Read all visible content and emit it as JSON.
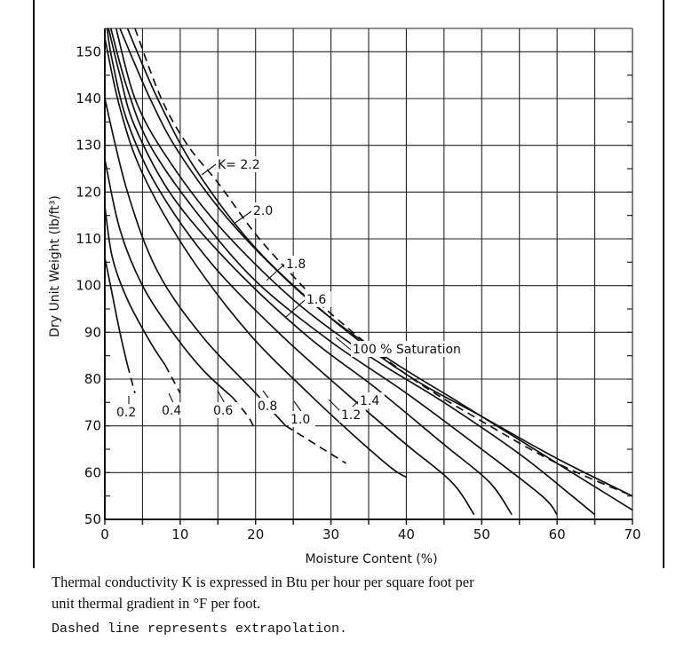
{
  "chart_data": {
    "type": "line",
    "xlabel": "Moisture Content (%)",
    "ylabel": "Dry Unit Weight (lb/ft³)",
    "xlim": [
      0,
      70
    ],
    "ylim": [
      50,
      155
    ],
    "x_ticks": [
      "0",
      "10",
      "20",
      "30",
      "40",
      "50",
      "60",
      "70"
    ],
    "y_ticks": [
      "50",
      "60",
      "70",
      "80",
      "90",
      "100",
      "110",
      "120",
      "130",
      "140",
      "150"
    ],
    "grid": true,
    "series": [
      {
        "name": "K= 2.2",
        "label": "K= 2.2",
        "solid": [
          [
            3,
            155
          ],
          [
            7,
            140
          ],
          [
            12,
            125
          ],
          [
            20,
            108
          ],
          [
            30,
            93
          ],
          [
            40,
            81
          ],
          [
            50,
            72
          ],
          [
            60,
            63
          ],
          [
            70,
            55
          ]
        ],
        "dashed": []
      },
      {
        "name": "2.0",
        "label": "2.0",
        "solid": [
          [
            2,
            155
          ],
          [
            6,
            140
          ],
          [
            10,
            128
          ],
          [
            17,
            113
          ],
          [
            27,
            97
          ],
          [
            37,
            85
          ],
          [
            47,
            75
          ],
          [
            57,
            65
          ],
          [
            67,
            55
          ],
          [
            70,
            52
          ]
        ],
        "dashed": []
      },
      {
        "name": "1.8",
        "label": "1.8",
        "solid": [
          [
            1.5,
            155
          ],
          [
            4,
            140
          ],
          [
            8,
            128
          ],
          [
            15,
            113
          ],
          [
            25,
            97
          ],
          [
            35,
            85
          ],
          [
            45,
            75
          ],
          [
            55,
            64
          ],
          [
            62,
            55
          ],
          [
            65,
            51
          ]
        ],
        "dashed": []
      },
      {
        "name": "1.6",
        "label": "1.6",
        "solid": [
          [
            0.8,
            155
          ],
          [
            3,
            142
          ],
          [
            6,
            130
          ],
          [
            12,
            116
          ],
          [
            20,
            101
          ],
          [
            30,
            88
          ],
          [
            40,
            77
          ],
          [
            50,
            65
          ],
          [
            58,
            55
          ],
          [
            60,
            51
          ]
        ],
        "dashed": []
      },
      {
        "name": "1.4",
        "label": "1.4",
        "solid": [
          [
            0.5,
            155
          ],
          [
            2,
            145
          ],
          [
            4,
            134
          ],
          [
            9,
            119
          ],
          [
            17,
            104
          ],
          [
            27,
            89
          ],
          [
            36,
            78
          ],
          [
            45,
            66
          ],
          [
            51,
            58
          ],
          [
            54,
            51
          ]
        ],
        "dashed": []
      },
      {
        "name": "1.2",
        "label": "1.2",
        "solid": [
          [
            0.3,
            155
          ],
          [
            1,
            148
          ],
          [
            3,
            135
          ],
          [
            7,
            121
          ],
          [
            14,
            105
          ],
          [
            23,
            90
          ],
          [
            32,
            77
          ],
          [
            40,
            66
          ],
          [
            46,
            58
          ],
          [
            49,
            51
          ]
        ],
        "dashed": []
      },
      {
        "name": "1.0",
        "label": "1.0",
        "solid": [
          [
            0,
            153
          ],
          [
            2,
            138
          ],
          [
            5,
            124
          ],
          [
            11,
            107
          ],
          [
            19,
            90
          ],
          [
            27,
            77
          ],
          [
            33,
            68
          ],
          [
            38,
            61
          ],
          [
            40,
            59
          ]
        ],
        "dashed": []
      },
      {
        "name": "0.8",
        "label": "0.8",
        "solid": [
          [
            0,
            140
          ],
          [
            3,
            120
          ],
          [
            7,
            103
          ],
          [
            13,
            89
          ],
          [
            20,
            77
          ],
          [
            24,
            70
          ]
        ],
        "dashed": [
          [
            24,
            70
          ],
          [
            28,
            66
          ],
          [
            32,
            62
          ]
        ]
      },
      {
        "name": "0.6",
        "label": "0.6",
        "solid": [
          [
            0,
            127
          ],
          [
            2,
            112
          ],
          [
            5,
            100
          ],
          [
            9,
            90
          ],
          [
            13,
            82
          ],
          [
            17,
            76
          ]
        ],
        "dashed": [
          [
            17,
            76
          ],
          [
            19,
            72
          ],
          [
            20,
            69
          ]
        ]
      },
      {
        "name": "0.4",
        "label": "0.4",
        "solid": [
          [
            0,
            117
          ],
          [
            1,
            106
          ],
          [
            3,
            97
          ],
          [
            6,
            88
          ],
          [
            8,
            83
          ]
        ],
        "dashed": [
          [
            8,
            83
          ],
          [
            9,
            80
          ],
          [
            10,
            77
          ]
        ]
      },
      {
        "name": "0.2",
        "label": "0.2",
        "solid": [
          [
            0,
            106
          ],
          [
            1,
            98
          ],
          [
            2,
            90
          ],
          [
            3,
            83
          ]
        ],
        "dashed": [
          [
            3,
            83
          ],
          [
            3.5,
            80
          ],
          [
            4,
            77
          ]
        ]
      },
      {
        "name": "100 % Saturation",
        "label": "100 % Saturation",
        "solid": [],
        "dashed": [
          [
            4,
            155
          ],
          [
            7.5,
            140
          ],
          [
            11,
            130
          ],
          [
            15,
            122
          ],
          [
            20,
            111
          ],
          [
            25,
            102
          ],
          [
            30,
            94
          ],
          [
            40,
            81
          ],
          [
            50,
            71
          ],
          [
            60,
            62
          ],
          [
            70,
            55
          ]
        ]
      }
    ]
  },
  "caption_line1": "Thermal conductivity K is expressed in Btu per hour per square foot per",
  "caption_line2": "unit thermal gradient in °F per foot.",
  "note": "Dashed line represents extrapolation."
}
